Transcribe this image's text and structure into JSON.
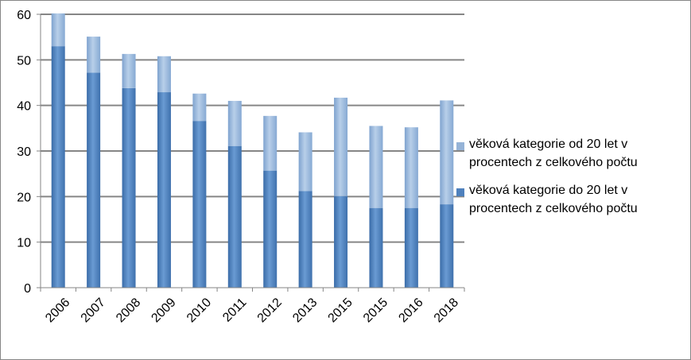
{
  "chart_data": {
    "type": "bar",
    "stacked": true,
    "categories": [
      "2006",
      "2007",
      "2008",
      "2009",
      "2010",
      "2011",
      "2012",
      "2013",
      "2015",
      "2015",
      "2016",
      "2018"
    ],
    "series": [
      {
        "name": "věková kategorie  do 20 let v procentech  z celkového počtu",
        "color": "#4f81bd",
        "values": [
          53,
          47.2,
          43.8,
          42.9,
          36.6,
          31.1,
          25.7,
          21.2,
          20.1,
          17.5,
          17.5,
          18.3
        ]
      },
      {
        "name": "věková kategorie od 20 let v procentech z celkového počtu",
        "color": "#95b3d7",
        "values": [
          7.2,
          7.9,
          7.5,
          7.9,
          6.0,
          9.9,
          12.0,
          12.9,
          21.6,
          18.0,
          17.7,
          22.8
        ]
      }
    ],
    "yticks": [
      "0",
      "10",
      "20",
      "30",
      "40",
      "50",
      "60"
    ],
    "ylim": [
      0,
      60
    ],
    "grid": true,
    "legend_position": "right",
    "title": "",
    "xlabel": "",
    "ylabel": ""
  }
}
